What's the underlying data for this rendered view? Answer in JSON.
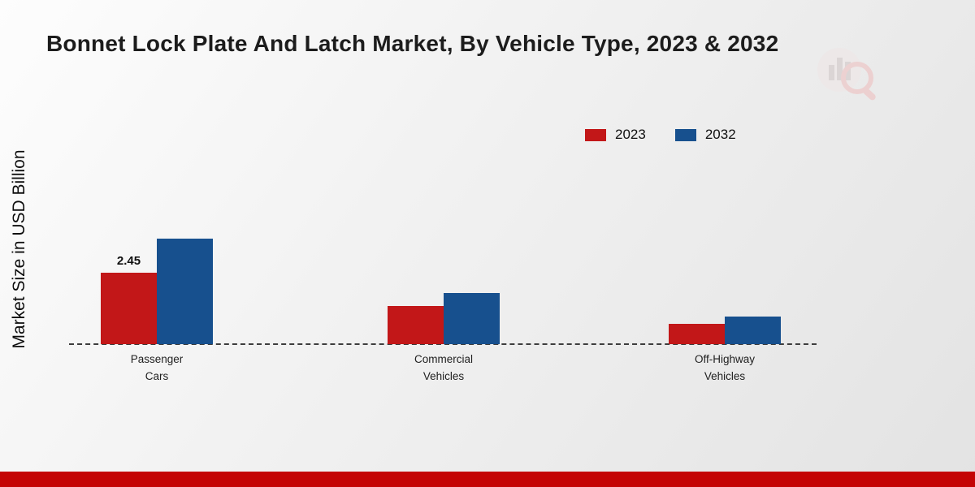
{
  "page": {
    "title": "Bonnet Lock Plate And Latch Market, By Vehicle Type, 2023 & 2032",
    "ylabel": "Market Size in USD Billion"
  },
  "legend": {
    "items": [
      {
        "label": "2023",
        "color": "#c21718"
      },
      {
        "label": "2032",
        "color": "#17508e"
      }
    ]
  },
  "chart_data": {
    "type": "bar",
    "title": "Bonnet Lock Plate And Latch Market, By Vehicle Type, 2023 & 2032",
    "xlabel": "",
    "ylabel": "Market Size in USD Billion",
    "categories": [
      "Passenger Cars",
      "Commercial Vehicles",
      "Off-Highway Vehicles"
    ],
    "series": [
      {
        "name": "2023",
        "color": "#c21718",
        "values": [
          2.45,
          1.3,
          0.7
        ]
      },
      {
        "name": "2032",
        "color": "#17508e",
        "values": [
          3.6,
          1.75,
          0.95
        ]
      }
    ],
    "annotations": [
      {
        "series": "2023",
        "category": "Passenger Cars",
        "text": "2.45"
      }
    ],
    "yaxis_ticks": "none",
    "grid": false,
    "legend_position": "top-right",
    "baseline_style": "dashed"
  },
  "colors": {
    "footer_bar": "#c40404",
    "background_from": "#fdfdfd",
    "background_to": "#e3e3e3"
  }
}
